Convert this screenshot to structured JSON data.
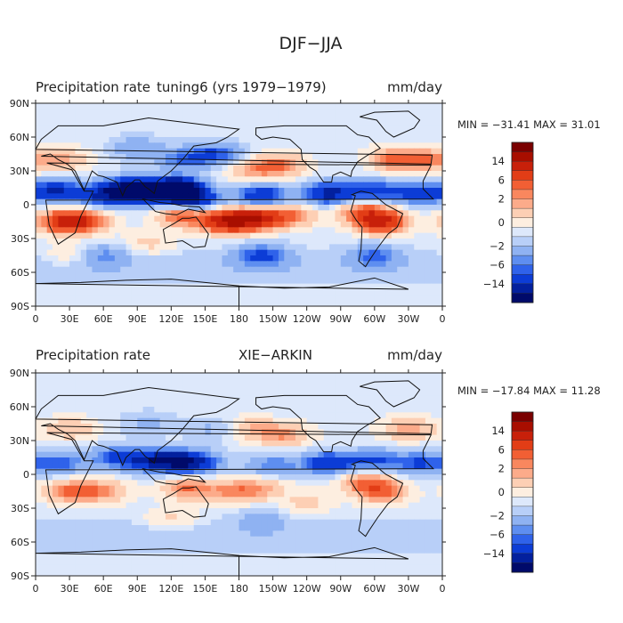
{
  "title": "DJF−JJA",
  "colorbar_colors": [
    "#7a0000",
    "#a80e00",
    "#c8200a",
    "#e23d16",
    "#f25f34",
    "#f9875e",
    "#fcab8a",
    "#fdcfb4",
    "#fdeee0",
    "#dde8fb",
    "#b8cff8",
    "#8fb2f2",
    "#5e8ef0",
    "#2f62ea",
    "#0c3cd6",
    "#03209e",
    "#000a6a"
  ],
  "colorbar_labels": [
    "14",
    "6",
    "2",
    "0",
    "−2",
    "−6",
    "−14"
  ],
  "continent_color": "#111111",
  "chart_data": [
    {
      "type": "heatmap",
      "title_left": "Precipitation rate",
      "title_center": "tuning6 (yrs 1979−1979)",
      "units": "mm/day",
      "min_label": "MIN =",
      "min": "−31.41",
      "max_label": "MAX =",
      "max": "31.01",
      "x_ticks": [
        "0",
        "30E",
        "60E",
        "90E",
        "120E",
        "150E",
        "180",
        "150W",
        "120W",
        "90W",
        "60W",
        "30W",
        "0"
      ],
      "y_ticks": [
        "90N",
        "60N",
        "30N",
        "0",
        "30S",
        "60S",
        "90S"
      ],
      "xlim": [
        0,
        360
      ],
      "ylim": [
        -90,
        90
      ],
      "features": [
        {
          "lon": 100,
          "lat": 10,
          "value": -9
        },
        {
          "lon": 125,
          "lat": 15,
          "value": -11
        },
        {
          "lon": 140,
          "lat": 5,
          "value": -8
        },
        {
          "lon": 80,
          "lat": 15,
          "value": -7
        },
        {
          "lon": 60,
          "lat": 8,
          "value": -6
        },
        {
          "lon": 20,
          "lat": 12,
          "value": -7
        },
        {
          "lon": 200,
          "lat": 8,
          "value": -7
        },
        {
          "lon": 260,
          "lat": 10,
          "value": -8
        },
        {
          "lon": 300,
          "lat": 12,
          "value": -6
        },
        {
          "lon": 340,
          "lat": 10,
          "value": -6
        },
        {
          "lon": 160,
          "lat": 45,
          "value": -5
        },
        {
          "lon": 130,
          "lat": 40,
          "value": -4
        },
        {
          "lon": 90,
          "lat": 50,
          "value": -3
        },
        {
          "lon": 200,
          "lat": -45,
          "value": -5
        },
        {
          "lon": 300,
          "lat": -45,
          "value": -4
        },
        {
          "lon": 60,
          "lat": -45,
          "value": -3
        },
        {
          "lon": 25,
          "lat": -15,
          "value": 9
        },
        {
          "lon": 45,
          "lat": -15,
          "value": 5
        },
        {
          "lon": 130,
          "lat": -10,
          "value": 6
        },
        {
          "lon": 170,
          "lat": -15,
          "value": 11
        },
        {
          "lon": 195,
          "lat": -12,
          "value": 9
        },
        {
          "lon": 225,
          "lat": -10,
          "value": 5
        },
        {
          "lon": 305,
          "lat": -15,
          "value": 10
        },
        {
          "lon": 290,
          "lat": -5,
          "value": 5
        },
        {
          "lon": 215,
          "lat": 35,
          "value": 5
        },
        {
          "lon": 190,
          "lat": 30,
          "value": 3
        },
        {
          "lon": 320,
          "lat": 40,
          "value": 6
        },
        {
          "lon": 350,
          "lat": 40,
          "value": 4
        },
        {
          "lon": 25,
          "lat": 40,
          "value": 3
        },
        {
          "lon": 100,
          "lat": -35,
          "value": 2
        },
        {
          "lon": 30,
          "lat": -45,
          "value": 2
        }
      ]
    },
    {
      "type": "heatmap",
      "title_left": "Precipitation rate",
      "title_center": "XIE−ARKIN",
      "units": "mm/day",
      "min_label": "MIN =",
      "min": "−17.84",
      "max_label": "MAX =",
      "max": "11.28",
      "x_ticks": [
        "0",
        "30E",
        "60E",
        "90E",
        "120E",
        "150E",
        "180",
        "150W",
        "120W",
        "90W",
        "60W",
        "30W",
        "0"
      ],
      "y_ticks": [
        "90N",
        "60N",
        "30N",
        "0",
        "30S",
        "60S",
        "90S"
      ],
      "xlim": [
        0,
        360
      ],
      "ylim": [
        -90,
        90
      ],
      "features": [
        {
          "lon": 100,
          "lat": 12,
          "value": -6
        },
        {
          "lon": 125,
          "lat": 12,
          "value": -7
        },
        {
          "lon": 145,
          "lat": 10,
          "value": -5
        },
        {
          "lon": 70,
          "lat": 15,
          "value": -5
        },
        {
          "lon": 20,
          "lat": 10,
          "value": -5
        },
        {
          "lon": 210,
          "lat": 8,
          "value": -4
        },
        {
          "lon": 260,
          "lat": 10,
          "value": -7
        },
        {
          "lon": 300,
          "lat": 12,
          "value": -5
        },
        {
          "lon": 340,
          "lat": 10,
          "value": -5
        },
        {
          "lon": 160,
          "lat": 40,
          "value": -2
        },
        {
          "lon": 100,
          "lat": 45,
          "value": -2
        },
        {
          "lon": 200,
          "lat": -40,
          "value": -2
        },
        {
          "lon": 30,
          "lat": -15,
          "value": 5
        },
        {
          "lon": 60,
          "lat": -15,
          "value": 4
        },
        {
          "lon": 135,
          "lat": -12,
          "value": 5
        },
        {
          "lon": 175,
          "lat": -15,
          "value": 4
        },
        {
          "lon": 200,
          "lat": -12,
          "value": 3
        },
        {
          "lon": 305,
          "lat": -15,
          "value": 6
        },
        {
          "lon": 290,
          "lat": -5,
          "value": 4
        },
        {
          "lon": 220,
          "lat": 35,
          "value": 4
        },
        {
          "lon": 190,
          "lat": 40,
          "value": 3
        },
        {
          "lon": 330,
          "lat": 40,
          "value": 4
        },
        {
          "lon": 30,
          "lat": 40,
          "value": 3
        },
        {
          "lon": 120,
          "lat": -40,
          "value": 2
        },
        {
          "lon": 240,
          "lat": -25,
          "value": 2
        }
      ]
    }
  ]
}
